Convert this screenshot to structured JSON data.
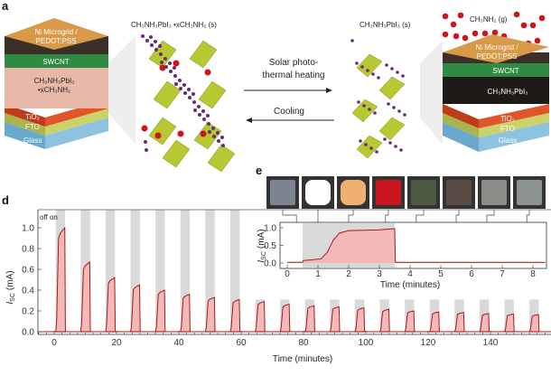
{
  "panels": {
    "a": "a",
    "d": "d",
    "e": "e"
  },
  "schematic": {
    "left_device": {
      "layers": [
        "Ni Microgrid /",
        "PEDOT:PSS",
        "SWCNT",
        "CH₃NH₃PbI₃",
        "•xCH₃NH₂",
        "TiO₂",
        "FTO",
        "Glass"
      ]
    },
    "left_crystal_label": "CH₃NH₃PbI₃ •xCH₃NH₂ (s)",
    "forward_arrow_label_1": "Solar photo-",
    "forward_arrow_label_2": "thermal heating",
    "reverse_arrow_label": "Cooling",
    "right_crystal_label": "CH₃NH₃PbI₃ (s)",
    "gas_label": "CH₃NH₂ (g)",
    "right_device": {
      "layers": [
        "Ni Microgrid /",
        "PEDOT:PSS",
        "SWCNT",
        "CH₃NH₃PbI₃",
        "TiO₂",
        "FTO",
        "Glass"
      ]
    },
    "colors": {
      "glass": "#8ec3e0",
      "fto": "#c9d36a",
      "tio2": "#e0552a",
      "swcnt": "#2f8a44",
      "perovskite_adduct": "#e8b8a8",
      "perovskite": "#1e1a18",
      "microgrid": "#d89a48",
      "gas": "#d0141c",
      "octahedra": "#b8c832"
    }
  },
  "chart_data": [
    {
      "id": "d",
      "type": "area",
      "xlabel": "Time (minutes)",
      "ylabel": "I_SC (mA)",
      "ylabel_main": "I",
      "ylabel_sub": "SC",
      "ylabel_unit": "(mA)",
      "annotation": "off on",
      "xlim": [
        -5,
        160
      ],
      "ylim": [
        -0.02,
        1.12
      ],
      "xticks": [
        0,
        20,
        40,
        60,
        80,
        100,
        120,
        140
      ],
      "yticks": [
        "0.0",
        "0.2",
        "0.4",
        "0.6",
        "0.8",
        "1.0"
      ],
      "cycle_period_min": 8,
      "on_intervals": [
        [
          0.5,
          3.5
        ],
        [
          8.5,
          11.5
        ],
        [
          16.5,
          19.5
        ],
        [
          24.5,
          27.5
        ],
        [
          32.5,
          35.5
        ],
        [
          40.5,
          43.5
        ],
        [
          48.5,
          51.5
        ],
        [
          56.5,
          59.5
        ],
        [
          64.5,
          67.5
        ],
        [
          72.5,
          75.5
        ],
        [
          80.5,
          83.5
        ],
        [
          88.5,
          91.5
        ],
        [
          96.5,
          99.5
        ],
        [
          104.5,
          107.5
        ],
        [
          112.5,
          115.5
        ],
        [
          120.5,
          123.5
        ],
        [
          128.5,
          131.5
        ],
        [
          136.5,
          139.5
        ],
        [
          144.5,
          147.5
        ],
        [
          152.5,
          155.5
        ]
      ],
      "peak_values": [
        1.0,
        0.67,
        0.52,
        0.45,
        0.4,
        0.36,
        0.33,
        0.31,
        0.29,
        0.265,
        0.25,
        0.24,
        0.23,
        0.215,
        0.2,
        0.19,
        0.185,
        0.175,
        0.17,
        0.165
      ],
      "off_value": 0.0,
      "colors": {
        "line": "#a31a1a",
        "fill": "#f4b8b8",
        "on_band": "#d9d9d9"
      }
    },
    {
      "id": "e",
      "type": "area",
      "xlabel": "Time (minutes)",
      "ylabel": "I_SC (mA)",
      "ylabel_main": "I",
      "ylabel_sub": "SC",
      "ylabel_unit": "(mA)",
      "xlim": [
        0,
        8.4
      ],
      "ylim": [
        -0.05,
        1.1
      ],
      "xticks": [
        0,
        1,
        2,
        3,
        4,
        5,
        6,
        7,
        8
      ],
      "yticks": [
        "0.0",
        "0.5",
        "1.0"
      ],
      "on_interval": [
        0.5,
        3.5
      ],
      "x": [
        0,
        0.5,
        0.52,
        0.8,
        1.1,
        1.3,
        1.5,
        1.7,
        2.0,
        2.5,
        3.0,
        3.4,
        3.5,
        3.52,
        8.4
      ],
      "y": [
        0.02,
        0.02,
        0.07,
        0.09,
        0.12,
        0.3,
        0.65,
        0.85,
        0.92,
        0.93,
        0.94,
        0.97,
        0.97,
        0.02,
        0.02
      ],
      "photo_colors": [
        "#7c8490",
        "#ffffff",
        "#f0b070",
        "#c8141c",
        "#4c5a40",
        "#5a4c44",
        "#8a8c88",
        "#8c9290"
      ],
      "photo_times": [
        0.3,
        1.0,
        2.0,
        3.2,
        4.2,
        5.5,
        6.5,
        7.8
      ]
    }
  ]
}
